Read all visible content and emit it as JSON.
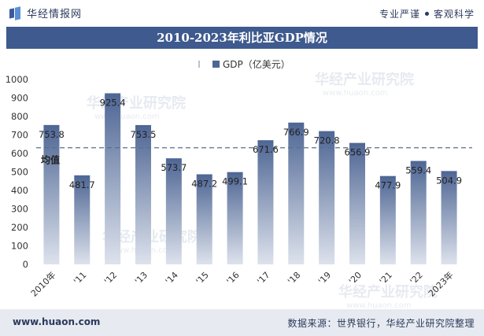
{
  "header": {
    "brand": "华经情报网",
    "tagline_left": "专业严谨",
    "tagline_right": "客观科学"
  },
  "title": "2010-2023年利比亚GDP情况",
  "footer": {
    "url": "www.huaon.com",
    "source": "数据来源：世界银行，华经产业研究院整理"
  },
  "watermark": {
    "text": "华经产业研究院",
    "url": "www.huaon.com"
  },
  "colors": {
    "bar_top": "#4e6694",
    "bar_bottom": "#dde2ec",
    "avg_line": "#5a6f8f",
    "title_bg": "#3e5a8e"
  },
  "chart_data": {
    "type": "bar",
    "categories": [
      "2010年",
      "'11",
      "'12",
      "'13",
      "'14",
      "'15",
      "'16",
      "'17",
      "'18",
      "'19",
      "'20",
      "'21",
      "'22",
      "2023年"
    ],
    "series": [
      {
        "name": "GDP（亿美元）",
        "values": [
          753.8,
          481.7,
          925.4,
          753.5,
          573.7,
          487.2,
          499.1,
          671.6,
          766.9,
          720.8,
          656.9,
          477.9,
          559.4,
          504.9
        ]
      }
    ],
    "value_labels": [
      "753.8",
      "481.7",
      "925.4",
      "753.5",
      "573.7",
      "487.2",
      "499.1",
      "671.6",
      "766.9",
      "720.8",
      "656.9",
      "477.9",
      "559.4",
      "504.9"
    ],
    "average": 630.9,
    "average_label": "均值",
    "ylim": [
      0,
      1000
    ],
    "yticks": [
      0,
      100,
      200,
      300,
      400,
      500,
      600,
      700,
      800,
      900,
      1000
    ],
    "legend_position": "top-center",
    "grid": false
  }
}
